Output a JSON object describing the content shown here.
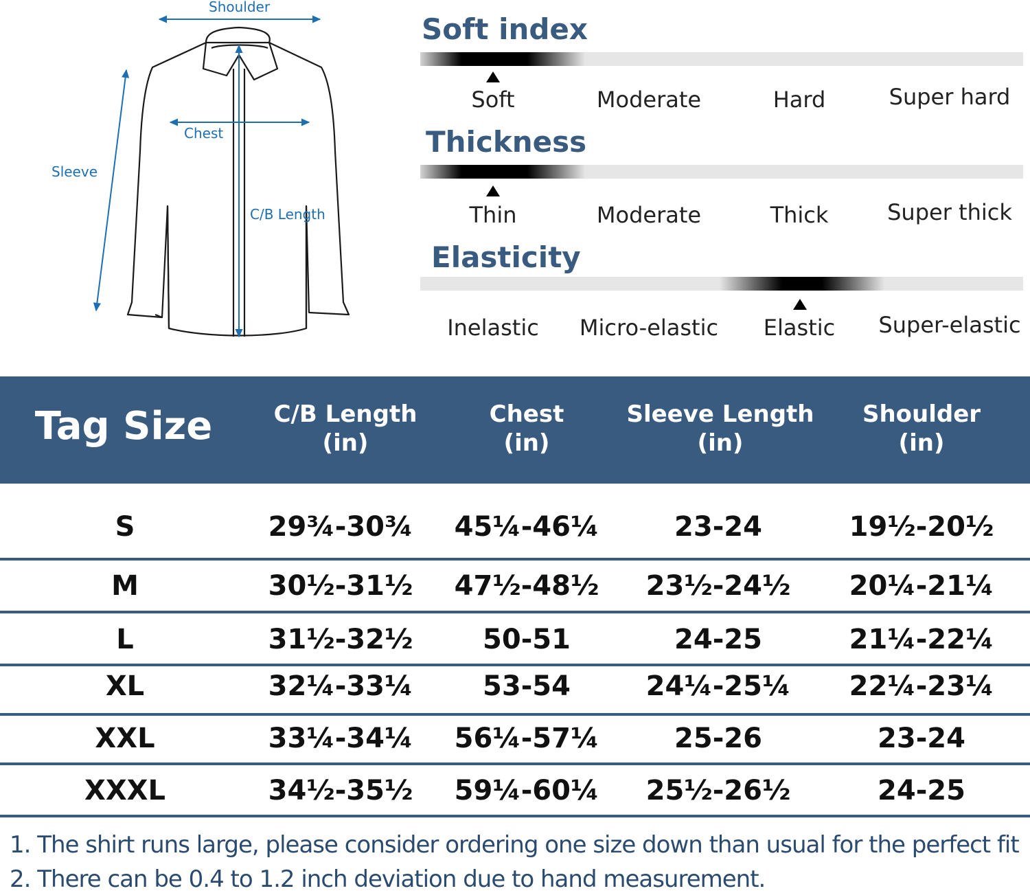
{
  "diagram": {
    "shoulder_label": "Shoulder",
    "chest_label": "Chest",
    "sleeve_label": "Sleeve",
    "cb_length_label": "C/B Length",
    "arrow_color": "#1d6fb1"
  },
  "scales": [
    {
      "title": "Soft index",
      "levels": [
        "Soft",
        "Moderate",
        "Hard",
        "Super hard"
      ],
      "selected": "Soft"
    },
    {
      "title": "Thickness",
      "levels": [
        "Thin",
        "Moderate",
        "Thick",
        "Super thick"
      ],
      "selected": "Thin"
    },
    {
      "title": "Elasticity",
      "levels": [
        "Inelastic",
        "Micro-elastic",
        "Elastic",
        "Super-elastic"
      ],
      "selected": "Elastic"
    }
  ],
  "table": {
    "header_color": "#3a5b80",
    "headers": {
      "tag_size": "Tag Size",
      "cb_length": [
        "C/B Length",
        "(in)"
      ],
      "chest": [
        "Chest",
        "(in)"
      ],
      "sleeve": [
        "Sleeve Length",
        "(in)"
      ],
      "shoulder": [
        "Shoulder",
        "(in)"
      ]
    },
    "rows": [
      {
        "size": "S",
        "cb": "29¾-30¾",
        "chest": "45¼-46¼",
        "sleeve": "23-24",
        "shoulder": "19½-20½"
      },
      {
        "size": "M",
        "cb": "30½-31½",
        "chest": "47½-48½",
        "sleeve": "23½-24½",
        "shoulder": "20¼-21¼"
      },
      {
        "size": "L",
        "cb": "31½-32½",
        "chest": "50-51",
        "sleeve": "24-25",
        "shoulder": "21¼-22¼"
      },
      {
        "size": "XL",
        "cb": "32¼-33¼",
        "chest": "53-54",
        "sleeve": "24¼-25¼",
        "shoulder": "22¼-23¼"
      },
      {
        "size": "XXL",
        "cb": "33¼-34¼",
        "chest": "56¼-57¼",
        "sleeve": "25-26",
        "shoulder": "23-24"
      },
      {
        "size": "XXXL",
        "cb": "34½-35½",
        "chest": "59¼-60¼",
        "sleeve": "25½-26½",
        "shoulder": "24-25"
      }
    ]
  },
  "notes": [
    "1.  The shirt runs large, please consider ordering one size down than usual for the perfect fit",
    "2. There can be 0.4 to 1.2 inch deviation due to hand measurement."
  ]
}
